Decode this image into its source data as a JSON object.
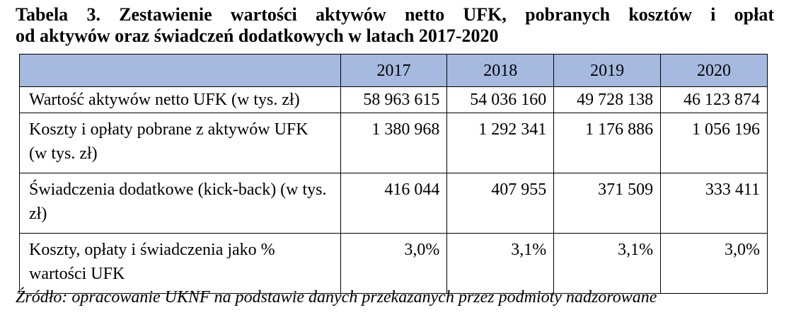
{
  "title": {
    "line1": "Tabela 3. Zestawienie wartości aktywów netto UFK, pobranych kosztów i opłat",
    "line2": "od aktywów oraz świadczeń dodatkowych w latach 2017-2020"
  },
  "table": {
    "header": {
      "corner": "",
      "years": [
        "2017",
        "2018",
        "2019",
        "2020"
      ]
    },
    "rows": [
      {
        "label": "Wartość aktywów netto UFK (w tys. zł)",
        "values": [
          "58 963 615",
          "54 036 160",
          "49 728 138",
          "46 123 874"
        ]
      },
      {
        "label": "Koszty i opłaty pobrane z aktywów UFK (w tys. zł)",
        "values": [
          "1 380 968",
          "1 292 341",
          "1 176 886",
          "1 056 196"
        ]
      },
      {
        "label": "Świadczenia dodatkowe (kick-back) (w tys. zł)",
        "values": [
          "416 044",
          "407 955",
          "371 509",
          "333 411"
        ]
      },
      {
        "label": "Koszty, opłaty i świadczenia jako % wartości UFK",
        "values": [
          "3,0%",
          "3,1%",
          "3,1%",
          "3,0%"
        ]
      }
    ]
  },
  "source": "Źródło: opracowanie UKNF na podstawie danych przekazanych przez podmioty nadzorowane",
  "colors": {
    "header_background": "#a6bae0",
    "border": "#000000",
    "text": "#000000"
  }
}
